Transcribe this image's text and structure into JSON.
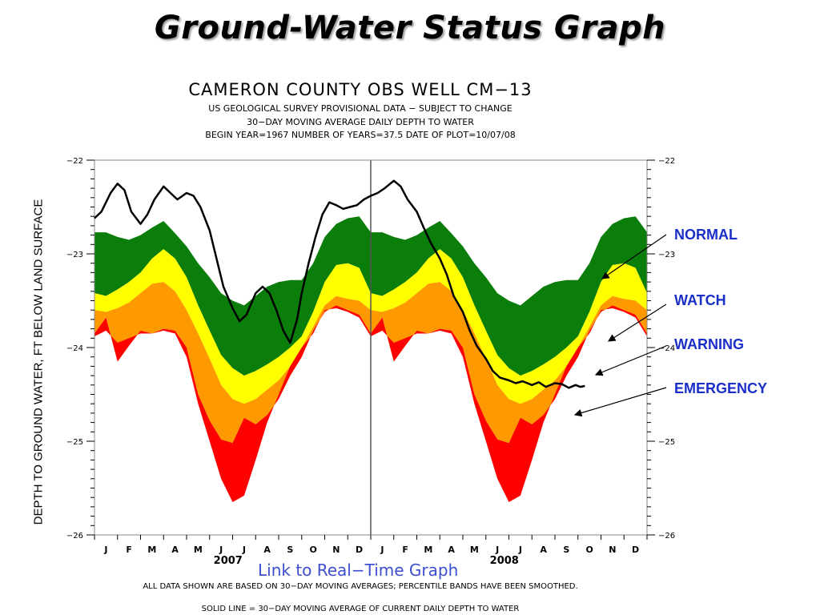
{
  "page": {
    "title": "Ground-Water Status Graph",
    "link_label": "Link to Real−Time Graph",
    "note1": "ALL DATA SHOWN ARE BASED ON 30−DAY MOVING AVERAGES;  PERCENTILE BANDS HAVE BEEN SMOOTHED.",
    "note2": "SOLID LINE  =  30−DAY MOVING AVERAGE OF CURRENT DAILY DEPTH TO WATER"
  },
  "callouts": [
    {
      "label": "NORMAL",
      "color": "#1a2fc8"
    },
    {
      "label": "WATCH",
      "color": "#1a2fc8"
    },
    {
      "label": "WARNING",
      "color": "#1a2fc8"
    },
    {
      "label": "EMERGENCY",
      "color": "#1a2fc8"
    }
  ],
  "chart_data": {
    "type": "area",
    "title": "CAMERON COUNTY OBS WELL CM−13",
    "subtitle_lines": [
      "US GEOLOGICAL SURVEY PROVISIONAL DATA  −  SUBJECT TO CHANGE",
      "30−DAY MOVING AVERAGE DAILY DEPTH TO WATER",
      "BEGIN YEAR=1967  NUMBER OF YEARS=37.5  DATE OF PLOT=10/07/08"
    ],
    "ylabel": "DEPTH TO GROUND WATER, FT BELOW LAND SURFACE",
    "ylim": [
      -22,
      -26
    ],
    "y_inverted": true,
    "yticks": [
      -22,
      -23,
      -24,
      -25,
      -26
    ],
    "ytick_labels": [
      "−22",
      "−23",
      "−24",
      "−25",
      "−26"
    ],
    "x_months": [
      "J",
      "F",
      "M",
      "A",
      "M",
      "J",
      "J",
      "A",
      "S",
      "O",
      "N",
      "D",
      "J",
      "F",
      "M",
      "A",
      "M",
      "J",
      "J",
      "A",
      "S",
      "O",
      "N",
      "D"
    ],
    "x_years": [
      {
        "label": "2007",
        "month_index": 5.8
      },
      {
        "label": "2008",
        "month_index": 17.8
      }
    ],
    "xlim": [
      0,
      24
    ],
    "year_divider_at": 12,
    "band_colors": {
      "normal": "#0a7d0a",
      "watch": "#ffff00",
      "warning": "#ff9900",
      "emergency": "#ff0000"
    },
    "line_color": "#000000",
    "band_x": [
      0,
      0.5,
      1,
      1.5,
      2,
      2.5,
      3,
      3.5,
      4,
      4.5,
      5,
      5.5,
      6,
      6.5,
      7,
      7.5,
      8,
      8.5,
      9,
      9.5,
      10,
      10.5,
      11,
      11.5,
      12
    ],
    "bands": {
      "normal_top": [
        -22.77,
        -22.77,
        -22.82,
        -22.85,
        -22.8,
        -22.72,
        -22.65,
        -22.78,
        -22.92,
        -23.1,
        -23.25,
        -23.42,
        -23.5,
        -23.55,
        -23.45,
        -23.35,
        -23.3,
        -23.28,
        -23.28,
        -23.1,
        -22.82,
        -22.68,
        -22.62,
        -22.6,
        -22.77
      ],
      "watch_top": [
        -23.42,
        -23.45,
        -23.38,
        -23.3,
        -23.2,
        -23.05,
        -22.95,
        -23.05,
        -23.25,
        -23.55,
        -23.82,
        -24.08,
        -24.22,
        -24.3,
        -24.25,
        -24.18,
        -24.1,
        -24.0,
        -23.88,
        -23.62,
        -23.3,
        -23.12,
        -23.1,
        -23.15,
        -23.42
      ],
      "warning_top": [
        -23.6,
        -23.62,
        -23.58,
        -23.52,
        -23.42,
        -23.32,
        -23.3,
        -23.4,
        -23.6,
        -23.85,
        -24.12,
        -24.4,
        -24.55,
        -24.6,
        -24.55,
        -24.45,
        -24.35,
        -24.2,
        -24.0,
        -23.78,
        -23.55,
        -23.45,
        -23.48,
        -23.5,
        -23.6
      ],
      "emergency_top": [
        -23.85,
        -23.68,
        -24.15,
        -23.98,
        -23.82,
        -23.85,
        -23.8,
        -23.82,
        -24.0,
        -24.5,
        -24.78,
        -24.98,
        -25.02,
        -24.75,
        -24.82,
        -24.72,
        -24.55,
        -24.3,
        -24.1,
        -23.82,
        -23.62,
        -23.55,
        -23.6,
        -23.65,
        -23.85
      ],
      "emergency_bottom": [
        -23.88,
        -23.82,
        -23.95,
        -23.9,
        -23.85,
        -23.85,
        -23.82,
        -23.85,
        -24.1,
        -24.6,
        -25.0,
        -25.4,
        -25.65,
        -25.58,
        -25.2,
        -24.8,
        -24.5,
        -24.2,
        -24.0,
        -23.85,
        -23.6,
        -23.58,
        -23.62,
        -23.68,
        -23.88
      ]
    },
    "series": [
      {
        "x": [
          0,
          0.3,
          0.7,
          1.0,
          1.3,
          1.6,
          2.0,
          2.3,
          2.6,
          3.0,
          3.3,
          3.6,
          4.0,
          4.3,
          4.6,
          5.0,
          5.3,
          5.6,
          6.0,
          6.3,
          6.6,
          7.0,
          7.3,
          7.6,
          7.9,
          8.2,
          8.5,
          8.8,
          9.0,
          9.3,
          9.6,
          9.9,
          10.2,
          10.5,
          10.8,
          11.1,
          11.4,
          11.7,
          12.0,
          12.3,
          12.6,
          13.0,
          13.3,
          13.6,
          14.0,
          14.3,
          14.6,
          15.0,
          15.3,
          15.6,
          16.0,
          16.3,
          16.6,
          17.0,
          17.3,
          17.6,
          18.0,
          18.3,
          18.6,
          19.0,
          19.3,
          19.6,
          20.0,
          20.3,
          20.6,
          20.9,
          21.1,
          21.3
        ],
        "y": [
          -22.62,
          -22.55,
          -22.35,
          -22.25,
          -22.32,
          -22.55,
          -22.68,
          -22.58,
          -22.42,
          -22.28,
          -22.35,
          -22.42,
          -22.35,
          -22.38,
          -22.5,
          -22.75,
          -23.05,
          -23.35,
          -23.58,
          -23.72,
          -23.65,
          -23.42,
          -23.35,
          -23.42,
          -23.6,
          -23.82,
          -23.95,
          -23.7,
          -23.42,
          -23.1,
          -22.82,
          -22.58,
          -22.45,
          -22.48,
          -22.52,
          -22.5,
          -22.48,
          -22.42,
          -22.38,
          -22.35,
          -22.3,
          -22.22,
          -22.28,
          -22.42,
          -22.55,
          -22.72,
          -22.88,
          -23.05,
          -23.22,
          -23.45,
          -23.62,
          -23.82,
          -23.98,
          -24.12,
          -24.25,
          -24.32,
          -24.35,
          -24.38,
          -24.36,
          -24.4,
          -24.37,
          -24.42,
          -24.38,
          -24.39,
          -24.43,
          -24.4,
          -24.42,
          -24.41
        ]
      }
    ],
    "grid": false
  }
}
